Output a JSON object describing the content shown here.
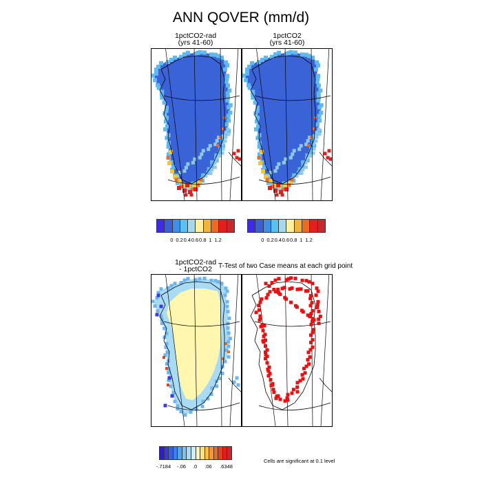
{
  "title": "ANN QOVER (mm/d)",
  "panels": {
    "top_left": {
      "line1": "1pctCO2-rad",
      "line2": "(yrs 41-60)"
    },
    "top_right": {
      "line1": "1pctCO2",
      "line2": "(yrs 41-60)"
    },
    "diff": {
      "line1": "1pctCO2-rad",
      "line2": "- 1pctCO2"
    }
  },
  "stat_title": "T-Test of two Case means at each grid point",
  "significance_note": "Cells are significant at 0.1 level",
  "colorbar_top": {
    "colors": [
      "#3e2be8",
      "#3a5fd6",
      "#3f8fe6",
      "#58c2f0",
      "#a8d8ee",
      "#fff0a0",
      "#f3b43a",
      "#ee6a20",
      "#e31e1e",
      "#c8282c"
    ],
    "labels": [
      "0",
      "0.2",
      "0.4",
      "0.6",
      "0.8",
      "1",
      "1.2"
    ]
  },
  "colorbar_diff": {
    "colors": [
      "#2b1fc8",
      "#3b39e0",
      "#3a5fd6",
      "#3f7fe8",
      "#4fa4ee",
      "#7cc4f2",
      "#a9dcf4",
      "#d3ecf4",
      "#fff6b0",
      "#ffe27a",
      "#f9be48",
      "#f49632",
      "#ee6a20",
      "#e54020",
      "#e31e1e",
      "#c8282c"
    ],
    "labels": [
      "-.7184",
      "-.06",
      ".0",
      ".06",
      ".6348"
    ]
  },
  "map_colors": {
    "ice_sheet": "#3b63d8",
    "coast_light": "#5fb8ee",
    "coast_mid": "#8fc8ee",
    "warm_yellow": "#f3c83a",
    "warm_orange": "#ee6a20",
    "warm_red": "#e31e1e",
    "dark_red": "#c8282c",
    "diff_interior": "#fff6b0",
    "diff_margin": "#a9dcf4",
    "significant": "#e81010"
  }
}
